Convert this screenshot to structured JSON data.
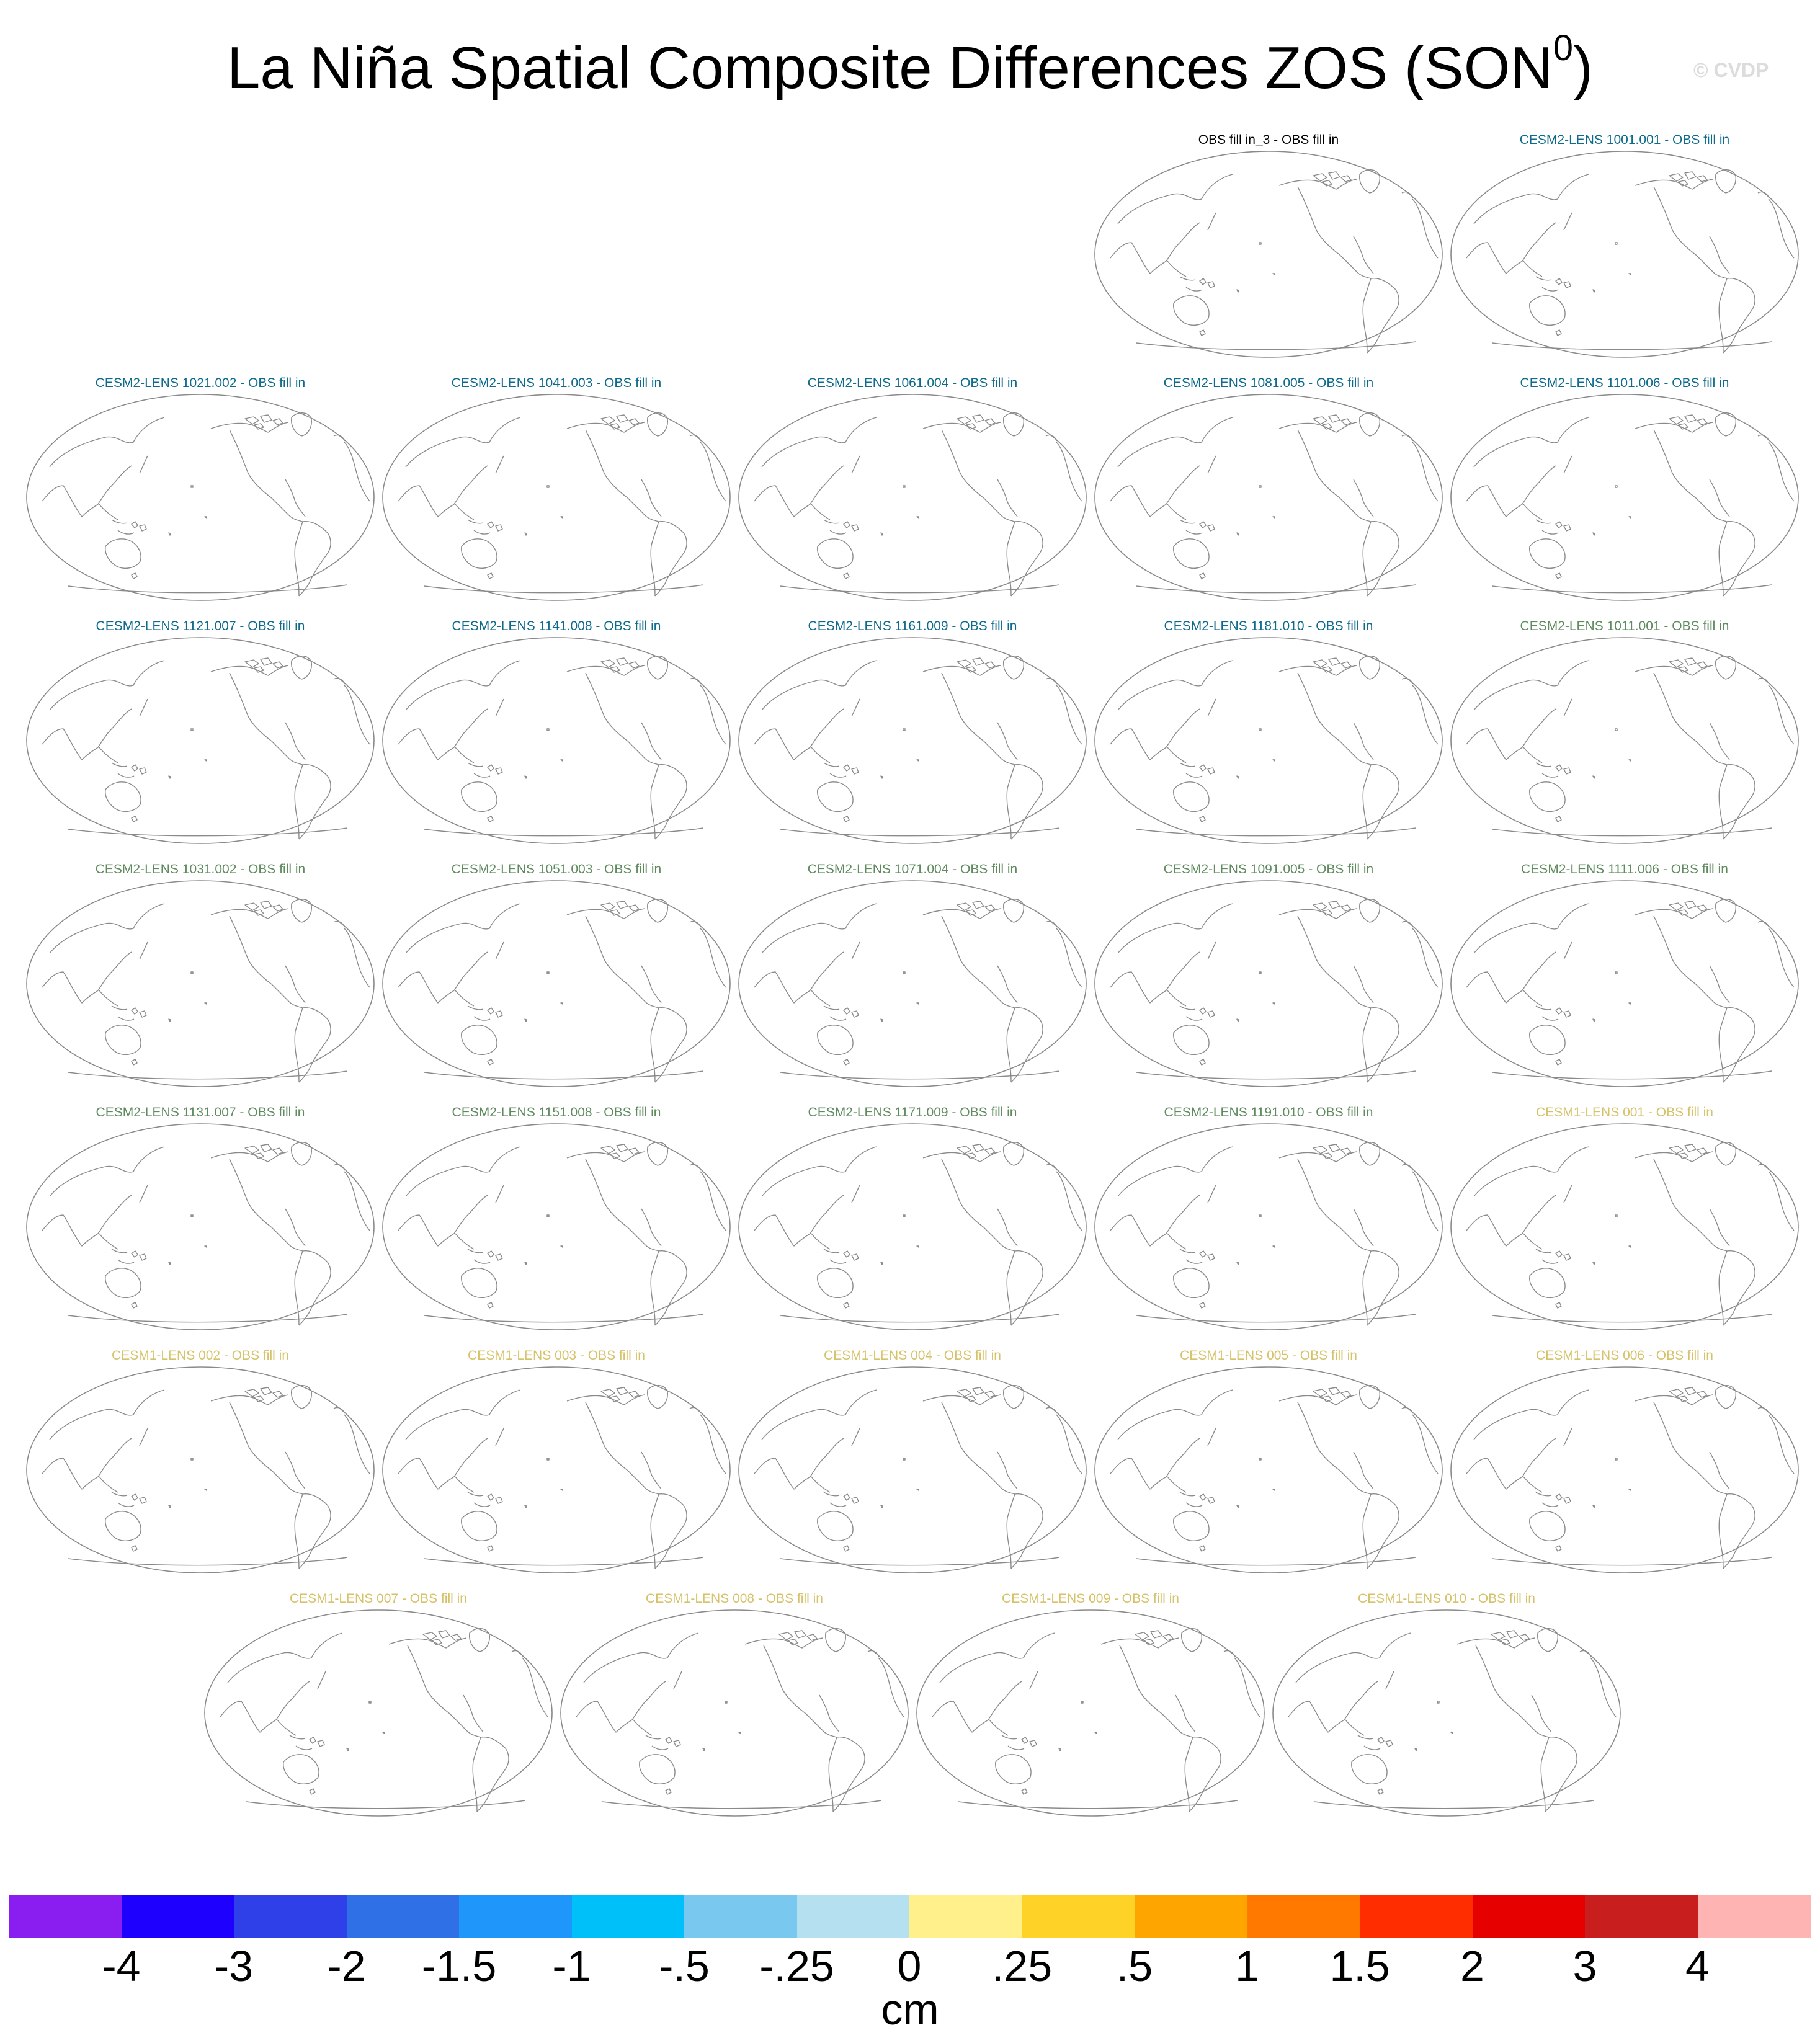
{
  "title": {
    "main": "La Niña Spatial Composite Differences ZOS (SON",
    "superscript": "0",
    "close": ")"
  },
  "watermark": "© CVDP",
  "colors": {
    "obs": "#000000",
    "cesm2_a": "#0f6b8c",
    "cesm2_b": "#5f8b5f",
    "cesm1": "#d6c26b",
    "coast": "#8a8a8a"
  },
  "panels": [
    {
      "label": "OBS fill in_3 - OBS fill in",
      "group": "obs"
    },
    {
      "label": "CESM2-LENS 1001.001 - OBS fill in",
      "group": "cesm2_a"
    },
    {
      "label": "CESM2-LENS 1021.002 - OBS fill in",
      "group": "cesm2_a"
    },
    {
      "label": "CESM2-LENS 1041.003 - OBS fill in",
      "group": "cesm2_a"
    },
    {
      "label": "CESM2-LENS 1061.004 - OBS fill in",
      "group": "cesm2_a"
    },
    {
      "label": "CESM2-LENS 1081.005 - OBS fill in",
      "group": "cesm2_a"
    },
    {
      "label": "CESM2-LENS 1101.006 - OBS fill in",
      "group": "cesm2_a"
    },
    {
      "label": "CESM2-LENS 1121.007 - OBS fill in",
      "group": "cesm2_a"
    },
    {
      "label": "CESM2-LENS 1141.008 - OBS fill in",
      "group": "cesm2_a"
    },
    {
      "label": "CESM2-LENS 1161.009 - OBS fill in",
      "group": "cesm2_a"
    },
    {
      "label": "CESM2-LENS 1181.010 - OBS fill in",
      "group": "cesm2_a"
    },
    {
      "label": "CESM2-LENS 1011.001 - OBS fill in",
      "group": "cesm2_b"
    },
    {
      "label": "CESM2-LENS 1031.002 - OBS fill in",
      "group": "cesm2_b"
    },
    {
      "label": "CESM2-LENS 1051.003 - OBS fill in",
      "group": "cesm2_b"
    },
    {
      "label": "CESM2-LENS 1071.004 - OBS fill in",
      "group": "cesm2_b"
    },
    {
      "label": "CESM2-LENS 1091.005 - OBS fill in",
      "group": "cesm2_b"
    },
    {
      "label": "CESM2-LENS 1111.006 - OBS fill in",
      "group": "cesm2_b"
    },
    {
      "label": "CESM2-LENS 1131.007 - OBS fill in",
      "group": "cesm2_b"
    },
    {
      "label": "CESM2-LENS 1151.008 - OBS fill in",
      "group": "cesm2_b"
    },
    {
      "label": "CESM2-LENS 1171.009 - OBS fill in",
      "group": "cesm2_b"
    },
    {
      "label": "CESM2-LENS 1191.010 - OBS fill in",
      "group": "cesm2_b"
    },
    {
      "label": "CESM1-LENS 001 - OBS fill in",
      "group": "cesm1"
    },
    {
      "label": "CESM1-LENS 002 - OBS fill in",
      "group": "cesm1"
    },
    {
      "label": "CESM1-LENS 003 - OBS fill in",
      "group": "cesm1"
    },
    {
      "label": "CESM1-LENS 004 - OBS fill in",
      "group": "cesm1"
    },
    {
      "label": "CESM1-LENS 005 - OBS fill in",
      "group": "cesm1"
    },
    {
      "label": "CESM1-LENS 006 - OBS fill in",
      "group": "cesm1"
    },
    {
      "label": "CESM1-LENS 007 - OBS fill in",
      "group": "cesm1"
    },
    {
      "label": "CESM1-LENS 008 - OBS fill in",
      "group": "cesm1"
    },
    {
      "label": "CESM1-LENS 009 - OBS fill in",
      "group": "cesm1"
    },
    {
      "label": "CESM1-LENS 010 - OBS fill in",
      "group": "cesm1"
    }
  ],
  "colorbar": {
    "colors": [
      "#8a1ef0",
      "#1e00ff",
      "#3040e8",
      "#3070e6",
      "#1e96fa",
      "#00c0fa",
      "#78c8f0",
      "#b4e0f0",
      "#fff08c",
      "#ffd228",
      "#ffa500",
      "#ff7800",
      "#ff2d00",
      "#e60000",
      "#c81e1e",
      "#ffb4b4"
    ],
    "ticks": [
      "-4",
      "-3",
      "-2",
      "-1.5",
      "-1",
      "-.5",
      "-.25",
      "0",
      ".25",
      ".5",
      "1",
      "1.5",
      "2",
      "3",
      "4"
    ],
    "units": "cm"
  }
}
